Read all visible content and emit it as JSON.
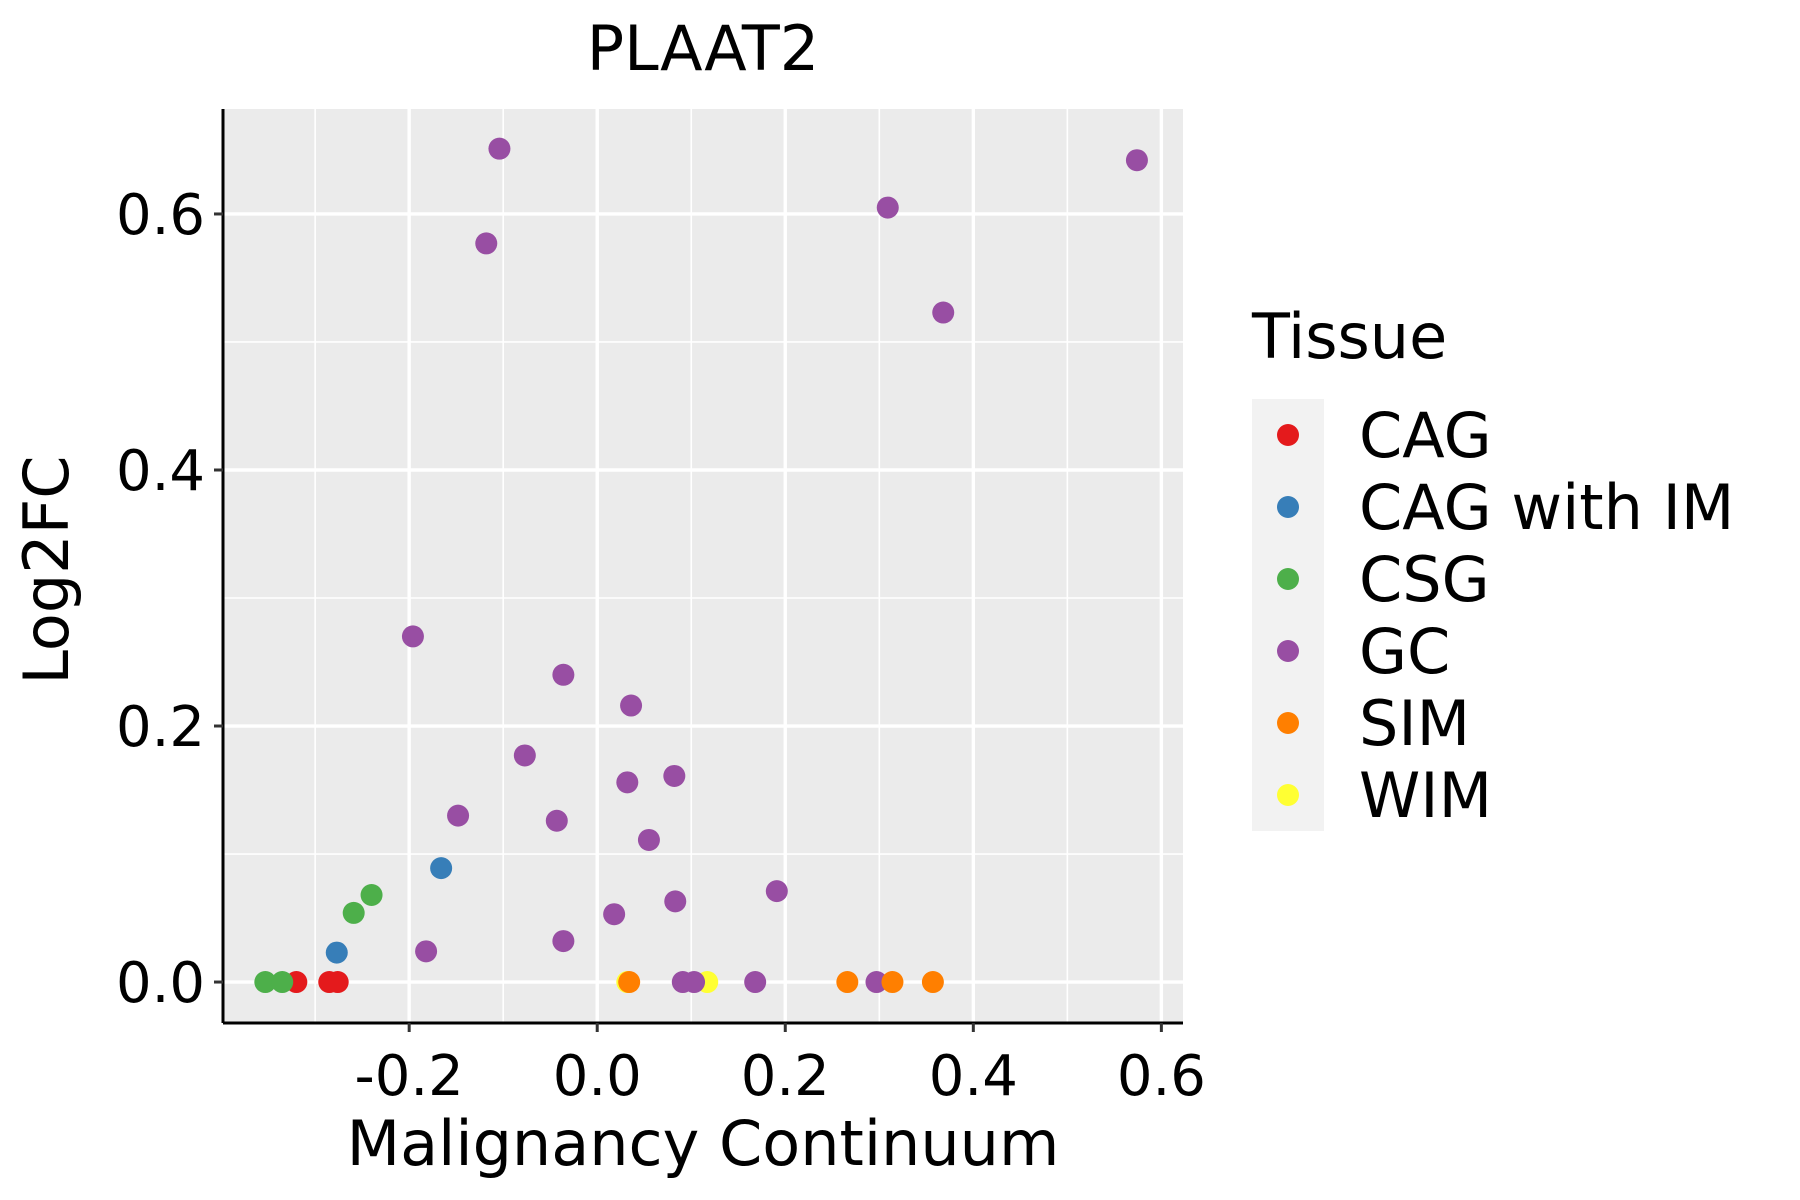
{
  "chart_data": {
    "type": "scatter",
    "title": "PLAAT2",
    "xlabel": "Malignancy Continuum",
    "ylabel": "Log2FC",
    "xlim": [
      -0.398,
      0.623
    ],
    "ylim": [
      -0.032,
      0.682
    ],
    "x_ticks": [
      -0.2,
      0.0,
      0.2,
      0.4,
      0.6
    ],
    "x_tick_labels": [
      "-0.2",
      "0.0",
      "0.2",
      "0.4",
      "0.6"
    ],
    "x_minor_grid": [
      -0.3,
      -0.1,
      0.1,
      0.3,
      0.5
    ],
    "y_ticks": [
      0.0,
      0.2,
      0.4,
      0.6
    ],
    "y_tick_labels": [
      "0.0",
      "0.2",
      "0.4",
      "0.6"
    ],
    "y_minor_grid": [
      0.1,
      0.3,
      0.5
    ],
    "grid": true,
    "panel_background": "#EBEBEB",
    "legend": {
      "title": "Tissue",
      "position": "right",
      "key_background": "#F2F2F2"
    },
    "series": [
      {
        "name": "CAG",
        "color": "#E41A1C",
        "points": [
          {
            "x": -0.32,
            "y": 0.0
          },
          {
            "x": -0.285,
            "y": 0.0
          },
          {
            "x": -0.276,
            "y": 0.0
          }
        ]
      },
      {
        "name": "CAG with IM",
        "color": "#377EB8",
        "points": [
          {
            "x": -0.166,
            "y": 0.089
          },
          {
            "x": -0.277,
            "y": 0.023
          }
        ]
      },
      {
        "name": "CSG",
        "color": "#4DAF4A",
        "points": [
          {
            "x": -0.24,
            "y": 0.068
          },
          {
            "x": -0.259,
            "y": 0.054
          },
          {
            "x": -0.353,
            "y": 0.0
          },
          {
            "x": -0.335,
            "y": 0.0
          }
        ]
      },
      {
        "name": "GC",
        "color": "#984EA3",
        "points": [
          {
            "x": -0.104,
            "y": 0.651
          },
          {
            "x": 0.574,
            "y": 0.642
          },
          {
            "x": 0.309,
            "y": 0.605
          },
          {
            "x": -0.118,
            "y": 0.577
          },
          {
            "x": 0.368,
            "y": 0.523
          },
          {
            "x": -0.196,
            "y": 0.27
          },
          {
            "x": -0.036,
            "y": 0.24
          },
          {
            "x": 0.036,
            "y": 0.216
          },
          {
            "x": -0.077,
            "y": 0.177
          },
          {
            "x": 0.032,
            "y": 0.156
          },
          {
            "x": 0.082,
            "y": 0.161
          },
          {
            "x": -0.148,
            "y": 0.13
          },
          {
            "x": -0.043,
            "y": 0.126
          },
          {
            "x": 0.055,
            "y": 0.111
          },
          {
            "x": 0.191,
            "y": 0.071
          },
          {
            "x": 0.083,
            "y": 0.063
          },
          {
            "x": 0.018,
            "y": 0.053
          },
          {
            "x": -0.036,
            "y": 0.032
          },
          {
            "x": -0.182,
            "y": 0.024
          },
          {
            "x": 0.091,
            "y": 0.0
          },
          {
            "x": 0.103,
            "y": 0.0
          },
          {
            "x": 0.168,
            "y": 0.0
          },
          {
            "x": 0.297,
            "y": 0.0
          }
        ]
      },
      {
        "name": "SIM",
        "color": "#FF7F00",
        "points": [
          {
            "x": 0.034,
            "y": 0.0
          },
          {
            "x": 0.266,
            "y": 0.0
          },
          {
            "x": 0.314,
            "y": 0.0
          },
          {
            "x": 0.357,
            "y": 0.0
          }
        ]
      },
      {
        "name": "WIM",
        "color": "#FFFF33",
        "points": [
          {
            "x": 0.032,
            "y": 0.0
          },
          {
            "x": 0.117,
            "y": 0.0
          }
        ]
      }
    ],
    "draw_order": [
      "WIM",
      "CAG",
      "CAG with IM",
      "CSG",
      "GC",
      "SIM"
    ]
  }
}
